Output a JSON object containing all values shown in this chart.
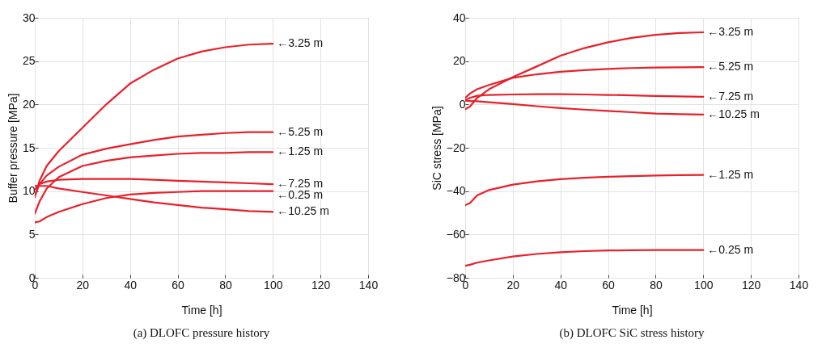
{
  "chart_data": [
    {
      "type": "line",
      "title": "(a)  DLOFC pressure history",
      "xlabel": "Time [h]",
      "ylabel": "Buffer pressure [MPa]",
      "xlim": [
        0,
        140
      ],
      "xticks": [
        0,
        20,
        40,
        60,
        80,
        100,
        120,
        140
      ],
      "ylim": [
        0,
        30
      ],
      "yticks": [
        0,
        5,
        10,
        15,
        20,
        25,
        30
      ],
      "grid": true,
      "legend": false,
      "marker": "none",
      "line_style": "solid",
      "x": [
        0,
        2,
        5,
        10,
        20,
        30,
        40,
        50,
        60,
        70,
        80,
        90,
        100
      ],
      "series": [
        {
          "name": "←3.25 m",
          "color": "#e8202a",
          "values": [
            9.3,
            11.2,
            12.9,
            14.6,
            17.3,
            20.0,
            22.4,
            24.0,
            25.3,
            26.1,
            26.6,
            26.9,
            27.0
          ]
        },
        {
          "name": "←5.25 m",
          "color": "#e8202a",
          "values": [
            9.5,
            10.8,
            11.8,
            12.8,
            14.2,
            14.9,
            15.4,
            15.9,
            16.3,
            16.5,
            16.7,
            16.8,
            16.8
          ]
        },
        {
          "name": "←1.25 m",
          "color": "#e8202a",
          "values": [
            7.4,
            8.8,
            10.3,
            11.6,
            12.9,
            13.5,
            13.9,
            14.1,
            14.3,
            14.4,
            14.4,
            14.5,
            14.5
          ]
        },
        {
          "name": "←7.25 m",
          "color": "#e8202a",
          "values": [
            10.2,
            10.8,
            11.1,
            11.3,
            11.4,
            11.4,
            11.4,
            11.3,
            11.2,
            11.1,
            11.0,
            10.9,
            10.8
          ]
        },
        {
          "name": "←0.25 m",
          "color": "#e8202a",
          "values": [
            6.4,
            6.5,
            7.0,
            7.6,
            8.5,
            9.2,
            9.6,
            9.8,
            9.9,
            10.0,
            10.0,
            10.0,
            10.0
          ]
        },
        {
          "name": "←10.25 m",
          "color": "#e8202a",
          "values": [
            10.6,
            10.6,
            10.6,
            10.3,
            9.9,
            9.5,
            9.1,
            8.7,
            8.4,
            8.1,
            7.9,
            7.7,
            7.6
          ]
        }
      ]
    },
    {
      "type": "line",
      "title": "(b)  DLOFC SiC stress history",
      "xlabel": "Time [h]",
      "ylabel": "SiC stress [MPa]",
      "xlim": [
        0,
        140
      ],
      "xticks": [
        0,
        20,
        40,
        60,
        80,
        100,
        120,
        140
      ],
      "ylim": [
        -80,
        40
      ],
      "yticks": [
        -80,
        -60,
        -40,
        -20,
        0,
        20,
        40
      ],
      "grid": true,
      "legend": false,
      "marker": "none",
      "line_style": "solid",
      "x": [
        0,
        2,
        5,
        10,
        20,
        30,
        40,
        50,
        60,
        70,
        80,
        90,
        100
      ],
      "series": [
        {
          "name": "←3.25 m",
          "color": "#e8202a",
          "values": [
            -2.2,
            -1.0,
            3.0,
            7.0,
            12.6,
            17.5,
            22.5,
            26.0,
            28.7,
            30.7,
            32.1,
            33.0,
            33.3
          ]
        },
        {
          "name": "←5.25 m",
          "color": "#e8202a",
          "values": [
            3.0,
            5.0,
            7.0,
            9.0,
            12.3,
            13.9,
            15.1,
            15.8,
            16.4,
            16.8,
            17.0,
            17.1,
            17.2
          ]
        },
        {
          "name": "←7.25 m",
          "color": "#e8202a",
          "values": [
            2.0,
            3.0,
            4.0,
            4.4,
            4.6,
            4.7,
            4.7,
            4.6,
            4.4,
            4.2,
            3.9,
            3.7,
            3.5
          ]
        },
        {
          "name": "←10.25 m",
          "color": "#e8202a",
          "values": [
            1.7,
            1.6,
            1.5,
            1.0,
            0.2,
            -0.8,
            -1.7,
            -2.4,
            -3.0,
            -3.6,
            -4.2,
            -4.5,
            -4.7
          ]
        },
        {
          "name": "←1.25 m",
          "color": "#e8202a",
          "values": [
            -46.5,
            -45.5,
            -42.0,
            -39.5,
            -37.0,
            -35.5,
            -34.5,
            -33.8,
            -33.4,
            -33.1,
            -32.8,
            -32.6,
            -32.5
          ]
        },
        {
          "name": "←0.25 m",
          "color": "#e8202a",
          "values": [
            -74.5,
            -74.0,
            -73.0,
            -72.0,
            -70.2,
            -69.0,
            -68.2,
            -67.7,
            -67.4,
            -67.3,
            -67.2,
            -67.2,
            -67.2
          ]
        }
      ]
    }
  ]
}
